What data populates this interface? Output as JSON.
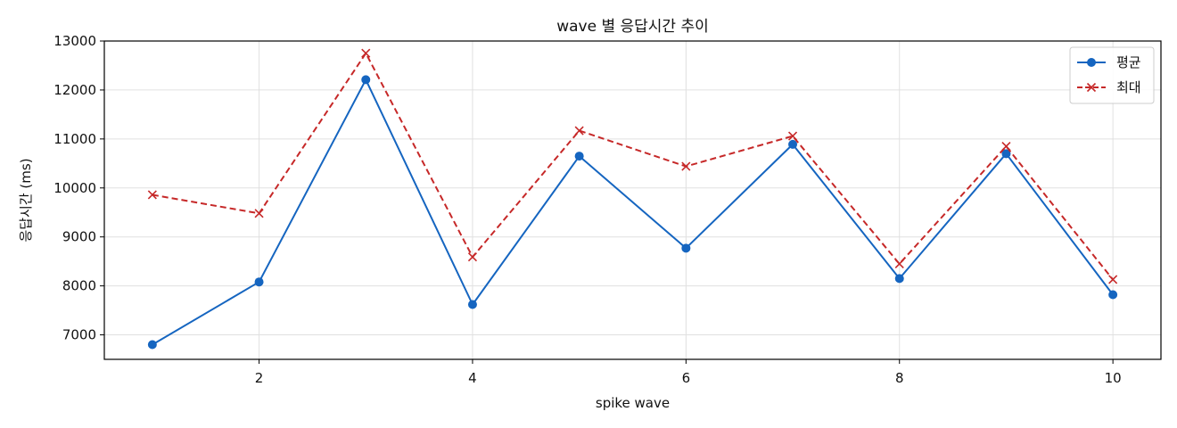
{
  "chart_data": {
    "type": "line",
    "title": "wave 별 응답시간 추이",
    "xlabel": "spike wave",
    "ylabel": "응답시간 (ms)",
    "x": [
      1,
      2,
      3,
      4,
      5,
      6,
      7,
      8,
      9,
      10
    ],
    "xlim": [
      0.55,
      10.45
    ],
    "ylim": [
      6500,
      13000
    ],
    "x_ticks": [
      2,
      4,
      6,
      8,
      10
    ],
    "y_ticks": [
      7000,
      8000,
      9000,
      10000,
      11000,
      12000,
      13000
    ],
    "grid": true,
    "legend_position": "top-right",
    "series": [
      {
        "name": "평균",
        "color": "#1565c0",
        "style": "solid",
        "marker": "circle",
        "values": [
          6800,
          8080,
          12210,
          7620,
          10650,
          8770,
          10890,
          8150,
          10700,
          7820
        ]
      },
      {
        "name": "최대",
        "color": "#c62828",
        "style": "dashed",
        "marker": "x",
        "values": [
          9860,
          9480,
          12750,
          8590,
          11170,
          10440,
          11060,
          8450,
          10850,
          8130
        ]
      }
    ]
  }
}
